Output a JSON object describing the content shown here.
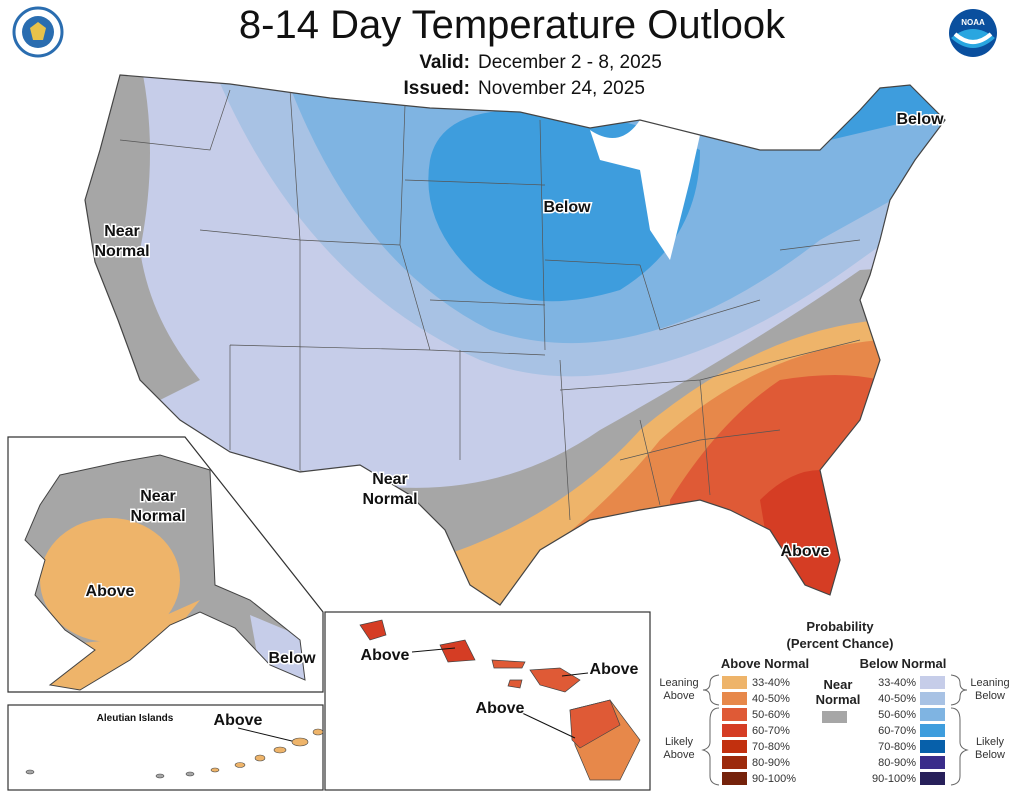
{
  "header": {
    "title": "8-14 Day Temperature Outlook",
    "valid_label": "Valid:",
    "valid_value": "December 2 - 8, 2025",
    "issued_label": "Issued:",
    "issued_value": "November 24, 2025",
    "logos": [
      "department-of-commerce-seal",
      "noaa-logo"
    ],
    "noaa_text": "NOAA"
  },
  "map": {
    "conus_labels": {
      "below_central": "Below",
      "below_northeast": "Below",
      "near_normal_west_1": "Near",
      "near_normal_west_2": "Normal",
      "near_normal_texas_1": "Near",
      "near_normal_texas_2": "Normal",
      "above_florida": "Above"
    },
    "alaska_labels": {
      "near_normal_1": "Near",
      "near_normal_2": "Normal",
      "above": "Above",
      "below": "Below"
    },
    "aleutian_labels": {
      "title": "Aleutian Islands",
      "above": "Above"
    },
    "hawaii_labels": {
      "above_1": "Above",
      "above_2": "Above",
      "above_3": "Above"
    }
  },
  "legend": {
    "title_1": "Probability",
    "title_2": "(Percent Chance)",
    "above_header": "Above Normal",
    "below_header": "Below Normal",
    "near_1": "Near",
    "near_2": "Normal",
    "near_color": "#a6a6a6",
    "leaning_above_1": "Leaning",
    "leaning_above_2": "Above",
    "likely_above_1": "Likely",
    "likely_above_2": "Above",
    "leaning_below_1": "Leaning",
    "leaning_below_2": "Below",
    "likely_below_1": "Likely",
    "likely_below_2": "Below",
    "above": [
      {
        "range": "33-40%",
        "color": "#eeb46a"
      },
      {
        "range": "40-50%",
        "color": "#e7884a"
      },
      {
        "range": "50-60%",
        "color": "#df5a36"
      },
      {
        "range": "60-70%",
        "color": "#d53d24"
      },
      {
        "range": "70-80%",
        "color": "#c2300e"
      },
      {
        "range": "80-90%",
        "color": "#9c2a0c"
      },
      {
        "range": "90-100%",
        "color": "#75220b"
      }
    ],
    "below": [
      {
        "range": "33-40%",
        "color": "#c6cde9"
      },
      {
        "range": "40-50%",
        "color": "#a8c2e4"
      },
      {
        "range": "50-60%",
        "color": "#7fb4e2"
      },
      {
        "range": "60-70%",
        "color": "#3e9ddd"
      },
      {
        "range": "70-80%",
        "color": "#0760aa"
      },
      {
        "range": "80-90%",
        "color": "#3a2c8a"
      },
      {
        "range": "90-100%",
        "color": "#27205a"
      }
    ]
  }
}
